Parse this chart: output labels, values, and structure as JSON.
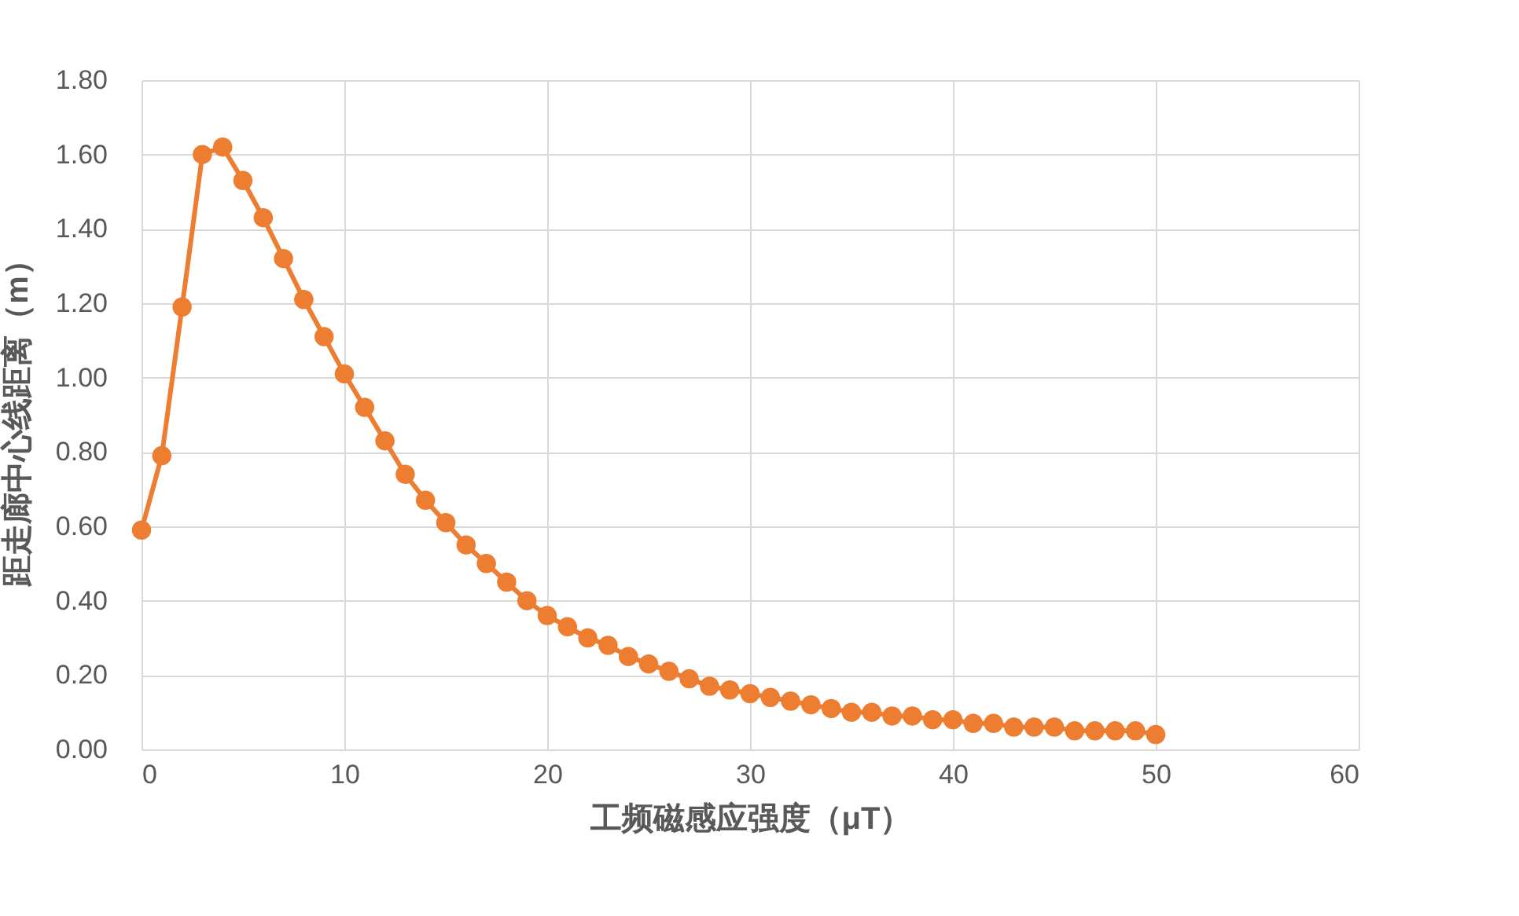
{
  "chart_data": {
    "type": "line",
    "xlabel": "工频磁感应强度（μT）",
    "ylabel": "距走廊中心线距离（m）",
    "x": [
      0,
      1,
      2,
      3,
      4,
      5,
      6,
      7,
      8,
      9,
      10,
      11,
      12,
      13,
      14,
      15,
      16,
      17,
      18,
      19,
      20,
      21,
      22,
      23,
      24,
      25,
      26,
      27,
      28,
      29,
      30,
      31,
      32,
      33,
      34,
      35,
      36,
      37,
      38,
      39,
      40,
      41,
      42,
      43,
      44,
      45,
      46,
      47,
      48,
      49,
      50
    ],
    "series": [
      {
        "color": "#ed7d31",
        "values": [
          0.59,
          0.79,
          1.19,
          1.6,
          1.62,
          1.53,
          1.43,
          1.32,
          1.21,
          1.11,
          1.01,
          0.92,
          0.83,
          0.74,
          0.67,
          0.61,
          0.55,
          0.5,
          0.45,
          0.4,
          0.36,
          0.33,
          0.3,
          0.28,
          0.25,
          0.23,
          0.21,
          0.19,
          0.17,
          0.16,
          0.15,
          0.14,
          0.13,
          0.12,
          0.11,
          0.1,
          0.1,
          0.09,
          0.09,
          0.08,
          0.08,
          0.07,
          0.07,
          0.06,
          0.06,
          0.06,
          0.05,
          0.05,
          0.05,
          0.05,
          0.04
        ]
      }
    ],
    "xlim": [
      0,
      60
    ],
    "xticks": [
      0,
      10,
      20,
      30,
      40,
      50,
      60
    ],
    "ylim": [
      0,
      1.8
    ],
    "yticks": [
      {
        "value": 0,
        "label": "0.00"
      },
      {
        "value": 0.2,
        "label": "0.20"
      },
      {
        "value": 0.4,
        "label": "0.40"
      },
      {
        "value": 0.6,
        "label": "0.60"
      },
      {
        "value": 0.8,
        "label": "0.80"
      },
      {
        "value": 1.0,
        "label": "1.00"
      },
      {
        "value": 1.2,
        "label": "1.20"
      },
      {
        "value": 1.4,
        "label": "1.40"
      },
      {
        "value": 1.6,
        "label": "1.60"
      },
      {
        "value": 1.8,
        "label": "1.80"
      }
    ],
    "grid": true,
    "marker": "circle",
    "line_style": "solid"
  }
}
